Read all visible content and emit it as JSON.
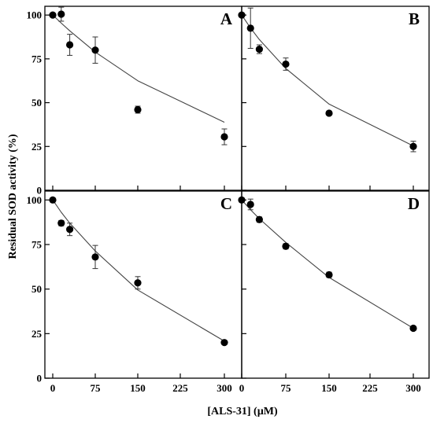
{
  "chart_data": {
    "type": "scatter",
    "xlabel": "[ALS-31] (µM)",
    "ylabel": "Residual SOD activity (%)",
    "xlim": [
      0,
      320
    ],
    "ylim": [
      0,
      105
    ],
    "xticks": [
      0,
      75,
      150,
      225,
      300
    ],
    "yticks": [
      0,
      25,
      50,
      75,
      100
    ],
    "xtick_labels": [
      "0",
      "75",
      "150",
      "225",
      "300"
    ],
    "ytick_labels": [
      "0",
      "25",
      "50",
      "75",
      "100"
    ],
    "grid": false,
    "layout": "2x2 panels sharing axes",
    "panels": [
      {
        "label": "A",
        "x": [
          0,
          15,
          30,
          75,
          150,
          300
        ],
        "y": [
          100,
          100.5,
          83,
          80,
          46,
          30.5
        ],
        "err": [
          0,
          4,
          6,
          7.5,
          2,
          4.5
        ],
        "fit_y": [
          100,
          95.4,
          91,
          78.9,
          62.5,
          38.8
        ]
      },
      {
        "label": "B",
        "x": [
          0,
          15,
          30,
          75,
          150,
          300
        ],
        "y": [
          100,
          92.5,
          80.5,
          72,
          44,
          25
        ],
        "err": [
          0,
          11.5,
          2.5,
          3.5,
          1,
          3
        ],
        "fit_y": [
          100,
          92.6,
          86,
          69.5,
          49.2,
          25.3
        ]
      },
      {
        "label": "C",
        "x": [
          0,
          15,
          30,
          75,
          150,
          300
        ],
        "y": [
          100,
          87,
          83.5,
          68,
          53.5,
          20
        ],
        "err": [
          0,
          1.5,
          3.5,
          6.5,
          3.5,
          1
        ],
        "fit_y": [
          100,
          93.1,
          87,
          71.4,
          49.5,
          20.8
        ]
      },
      {
        "label": "D",
        "x": [
          0,
          15,
          30,
          75,
          150,
          300
        ],
        "y": [
          100,
          97.5,
          89,
          74,
          58,
          28
        ],
        "err": [
          0,
          3,
          1.5,
          1.5,
          1.5,
          1
        ],
        "fit_y": [
          100,
          94.5,
          89.5,
          76.2,
          56.5,
          28
        ]
      }
    ]
  }
}
